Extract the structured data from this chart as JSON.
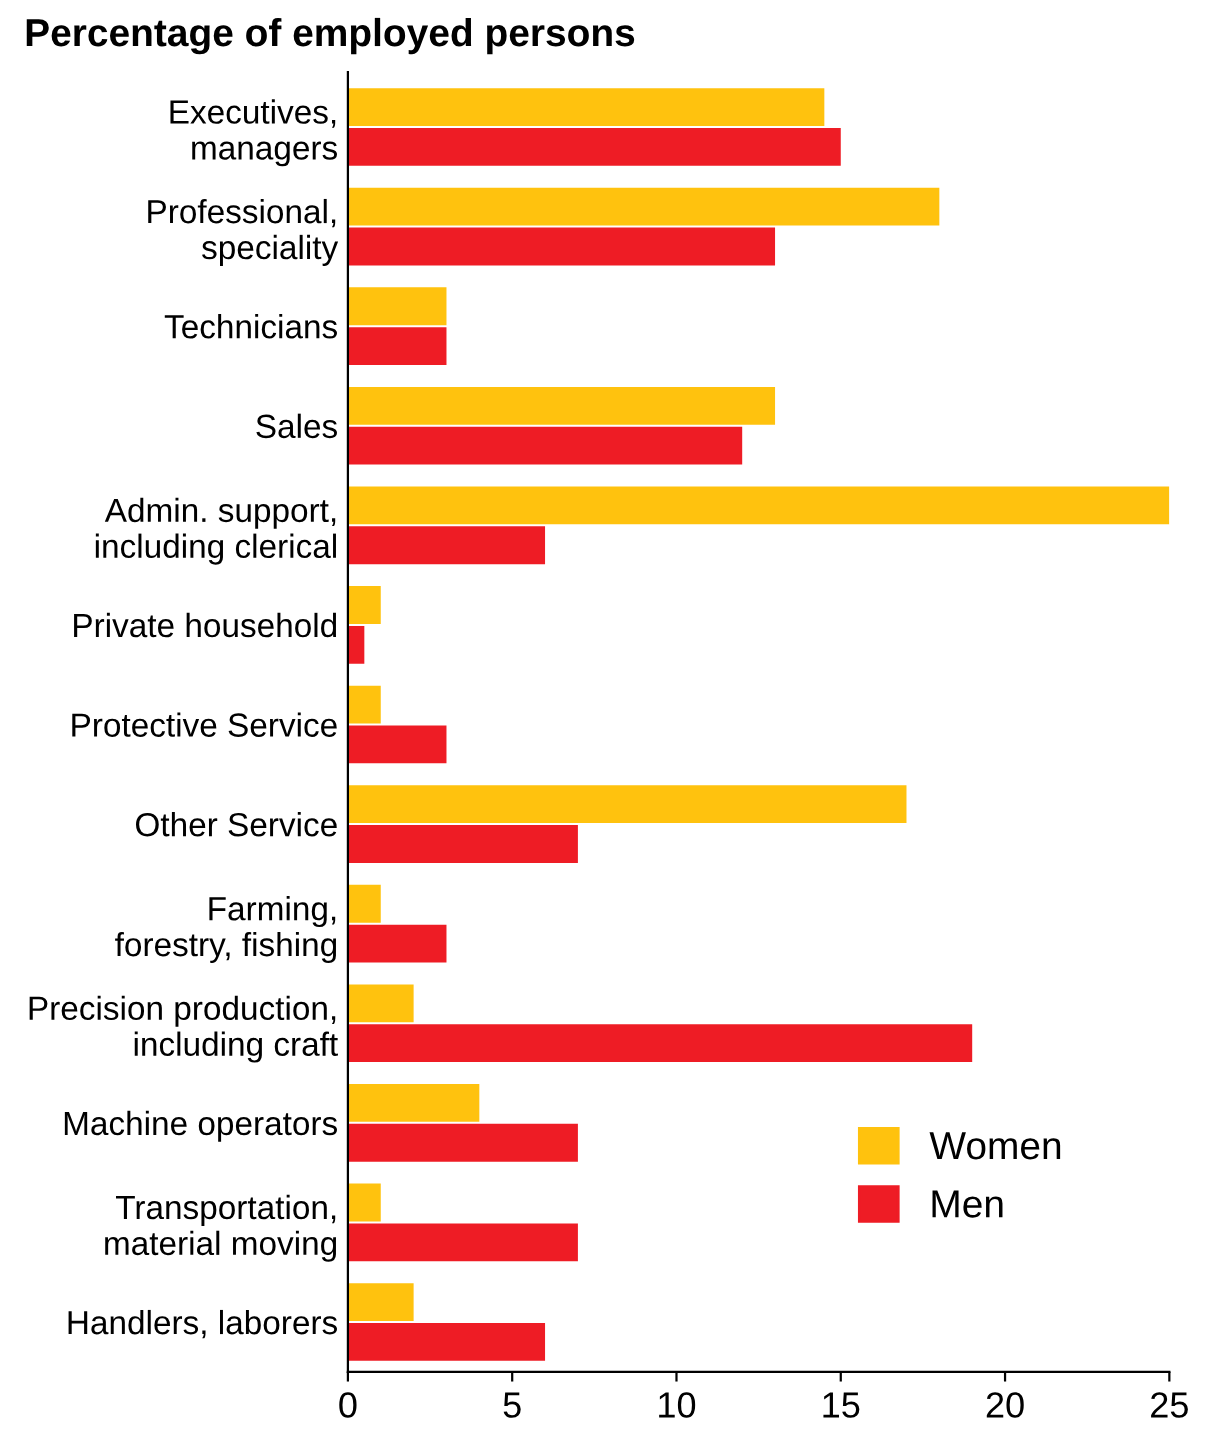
{
  "chart_data": {
    "type": "bar",
    "orientation": "horizontal",
    "title": "Percentage of employed persons",
    "categories": [
      "Executives,\nmanagers",
      "Professional,\nspeciality",
      "Technicians",
      "Sales",
      "Admin. support,\nincluding clerical",
      "Private household",
      "Protective Service",
      "Other Service",
      "Farming,\nforestry, fishing",
      "Precision production,\nincluding craft",
      "Machine operators",
      "Transportation,\nmaterial moving",
      "Handlers, laborers"
    ],
    "series": [
      {
        "name": "Women",
        "color": "#ffc20e",
        "values": [
          14.5,
          18,
          3,
          13,
          25,
          1,
          1,
          17,
          1,
          2,
          4,
          1,
          2
        ]
      },
      {
        "name": "Men",
        "color": "#ee1c25",
        "values": [
          15,
          13,
          3,
          12,
          6,
          0.5,
          3,
          7,
          3,
          19,
          7,
          7,
          6
        ]
      }
    ],
    "xlim": [
      0,
      25
    ],
    "xticks": [
      0,
      5,
      10,
      15,
      20,
      25
    ],
    "grid": false,
    "legend": "right"
  }
}
